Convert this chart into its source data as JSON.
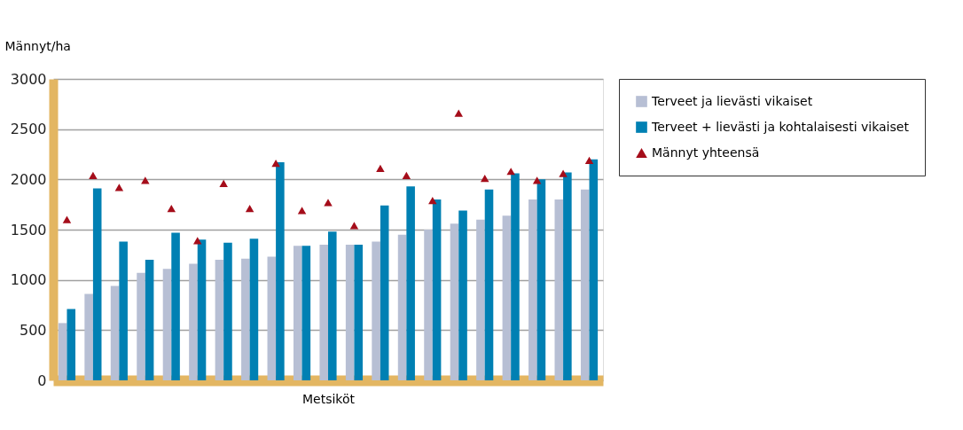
{
  "chart_data": {
    "type": "bar",
    "xlabel": "Metsiköt",
    "ylabel": "Männyt/ha",
    "categories": [
      null,
      null,
      null,
      null,
      null,
      null,
      null,
      null,
      null,
      null,
      null,
      null,
      null,
      null,
      null,
      null,
      null,
      null,
      null,
      null,
      null
    ],
    "series": [
      {
        "name": "Terveet ja lievästi vikaiset",
        "color": "#b7bfd4",
        "values": [
          570,
          860,
          940,
          1070,
          1110,
          1160,
          1200,
          1210,
          1230,
          1340,
          1350,
          1350,
          1380,
          1450,
          1500,
          1560,
          1600,
          1640,
          1800,
          1800,
          1900
        ]
      },
      {
        "name": "Terveet + lievästi ja kohtalaisesti vikaiset",
        "color": "#0080b3",
        "values": [
          710,
          1910,
          1380,
          1200,
          1470,
          1400,
          1370,
          1410,
          2170,
          1340,
          1480,
          1350,
          1740,
          1930,
          1800,
          1690,
          1900,
          2060,
          2000,
          2070,
          2200
        ]
      },
      {
        "name": "Männyt yhteensä",
        "type": "scatter",
        "marker": "triangle",
        "color": "#a50d1a",
        "values": [
          1600,
          2040,
          1920,
          1990,
          1710,
          1390,
          1960,
          1710,
          2160,
          1690,
          1770,
          1540,
          2110,
          2040,
          1790,
          2660,
          2010,
          2080,
          1990,
          2060,
          2190
        ]
      }
    ],
    "ylim": [
      0,
      3000
    ],
    "yticks": [
      0,
      500,
      1000,
      1500,
      2000,
      2500,
      3000
    ],
    "grid": "y",
    "legend": "right"
  }
}
